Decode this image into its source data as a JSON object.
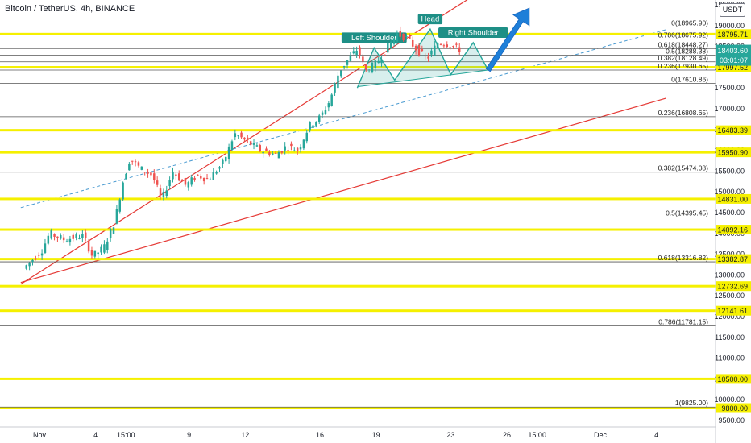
{
  "header": {
    "title": "Bitcoin / TetherUS, 4h, BINANCE",
    "currency": "USDT"
  },
  "colors": {
    "up": "#26a69a",
    "down": "#ef5350",
    "yellow": "#f5f000",
    "channel": "#e53935",
    "pattern": "#26a69a",
    "arrow": "#1e7fd8",
    "mid": "#4a9bd1",
    "label_bg": "#1e8f86"
  },
  "chart_data": {
    "type": "candlestick",
    "symbol": "Bitcoin / TetherUS",
    "interval": "4h",
    "exchange": "BINANCE",
    "ylim": [
      9500,
      19500
    ],
    "y_ticks": [
      9500,
      10000,
      10500,
      11000,
      11500,
      12000,
      12500,
      13000,
      13500,
      14000,
      14500,
      15000,
      15500,
      16000,
      16500,
      17000,
      17500,
      18000,
      18500,
      19000,
      19500
    ],
    "x_ticks": [
      {
        "label": "Nov",
        "day": 0
      },
      {
        "label": "4",
        "day": 3
      },
      {
        "label": "15:00",
        "day": 4.625
      },
      {
        "label": "9",
        "day": 8
      },
      {
        "label": "12",
        "day": 11
      },
      {
        "label": "16",
        "day": 15
      },
      {
        "label": "19",
        "day": 18
      },
      {
        "label": "23",
        "day": 22
      },
      {
        "label": "26",
        "day": 25
      },
      {
        "label": "15:00",
        "day": 26.625
      },
      {
        "label": "Dec",
        "day": 30
      },
      {
        "label": "4",
        "day": 33
      }
    ],
    "last_price": 18403.6,
    "countdown": "03:01:07",
    "horizontal_levels": [
      18795.71,
      17997.52,
      16483.39,
      15950.9,
      14831.0,
      14092.16,
      13382.87,
      12732.69,
      12141.61,
      10500.0,
      9800.0
    ],
    "fib_upper": [
      {
        "ratio": "0",
        "label": "0(18965.90)",
        "value": 18965.9
      },
      {
        "ratio": "0.786",
        "label": "0.786(18675.92)",
        "value": 18675.92
      },
      {
        "ratio": "0.618",
        "label": "0.618(18448.27)",
        "value": 18448.27
      },
      {
        "ratio": "0.5",
        "label": "0.5(18288.38)",
        "value": 18288.38
      },
      {
        "ratio": "0.382",
        "label": "0.382(18128.49)",
        "value": 18128.49
      },
      {
        "ratio": "0.236",
        "label": "0.236(17930.65)",
        "value": 17930.65
      },
      {
        "ratio": "0",
        "label": "0(17610.86)",
        "value": 17610.86
      }
    ],
    "fib_lower": [
      {
        "ratio": "0.236",
        "label": "0.236(16808.65)",
        "value": 16808.65
      },
      {
        "ratio": "0.382",
        "label": "0.382(15474.08)",
        "value": 15474.08
      },
      {
        "ratio": "0.5",
        "label": "0.5(14395.45)",
        "value": 14395.45
      },
      {
        "ratio": "0.618",
        "label": "0.618(13316.82)",
        "value": 13316.82
      },
      {
        "ratio": "0.786",
        "label": "0.786(11781.15)",
        "value": 11781.15
      },
      {
        "ratio": "1",
        "label": "1(9825.00)",
        "value": 9825.0
      }
    ],
    "channel_upper": [
      {
        "day": -1,
        "v": 12780
      },
      {
        "day": 24.2,
        "v": 20000
      }
    ],
    "channel_lower": [
      {
        "day": -1,
        "v": 12820
      },
      {
        "day": 33.5,
        "v": 17250
      }
    ],
    "channel_mid": [
      {
        "day": -1,
        "v": 14620
      },
      {
        "day": 33.5,
        "v": 18900
      }
    ],
    "pattern": {
      "labels": [
        "Left Shoulder",
        "Head",
        "Right Shoulder"
      ],
      "path": [
        {
          "day": 17.0,
          "v": 17500
        },
        {
          "day": 17.9,
          "v": 18465
        },
        {
          "day": 19.0,
          "v": 17690
        },
        {
          "day": 20.9,
          "v": 18915
        },
        {
          "day": 22.0,
          "v": 17820
        },
        {
          "day": 23.2,
          "v": 18590
        },
        {
          "day": 24.0,
          "v": 17930
        }
      ],
      "neckline": [
        {
          "day": 17.0,
          "v": 17530
        },
        {
          "day": 24.0,
          "v": 17930
        }
      ]
    },
    "arrow": {
      "from": {
        "day": 24.0,
        "v": 17930
      },
      "to": {
        "day": 26.2,
        "v": 19420
      }
    },
    "anchors": [
      {
        "day": -0.7,
        "v": 13150
      },
      {
        "day": 0.3,
        "v": 13600
      },
      {
        "day": 0.7,
        "v": 14000
      },
      {
        "day": 1.5,
        "v": 13850
      },
      {
        "day": 2.5,
        "v": 13950
      },
      {
        "day": 3.0,
        "v": 13450
      },
      {
        "day": 3.6,
        "v": 13650
      },
      {
        "day": 4.2,
        "v": 14300
      },
      {
        "day": 4.6,
        "v": 15200
      },
      {
        "day": 5.0,
        "v": 15800
      },
      {
        "day": 5.6,
        "v": 15550
      },
      {
        "day": 6.2,
        "v": 15400
      },
      {
        "day": 6.7,
        "v": 14800
      },
      {
        "day": 7.3,
        "v": 15500
      },
      {
        "day": 8.0,
        "v": 15150
      },
      {
        "day": 8.6,
        "v": 15400
      },
      {
        "day": 9.2,
        "v": 15300
      },
      {
        "day": 10.0,
        "v": 15700
      },
      {
        "day": 10.6,
        "v": 16400
      },
      {
        "day": 11.3,
        "v": 16200
      },
      {
        "day": 12.0,
        "v": 16000
      },
      {
        "day": 12.8,
        "v": 15900
      },
      {
        "day": 13.4,
        "v": 16100
      },
      {
        "day": 14.0,
        "v": 16000
      },
      {
        "day": 14.6,
        "v": 16600
      },
      {
        "day": 15.2,
        "v": 16800
      },
      {
        "day": 15.7,
        "v": 17200
      },
      {
        "day": 16.2,
        "v": 17900
      },
      {
        "day": 16.7,
        "v": 18200
      },
      {
        "day": 17.2,
        "v": 18450
      },
      {
        "day": 17.6,
        "v": 17900
      },
      {
        "day": 18.2,
        "v": 18100
      },
      {
        "day": 18.8,
        "v": 18500
      },
      {
        "day": 19.3,
        "v": 18800
      },
      {
        "day": 19.8,
        "v": 18700
      },
      {
        "day": 20.4,
        "v": 18400
      },
      {
        "day": 20.9,
        "v": 18200
      },
      {
        "day": 21.5,
        "v": 18600
      },
      {
        "day": 22.1,
        "v": 18550
      },
      {
        "day": 22.6,
        "v": 18420
      }
    ]
  }
}
